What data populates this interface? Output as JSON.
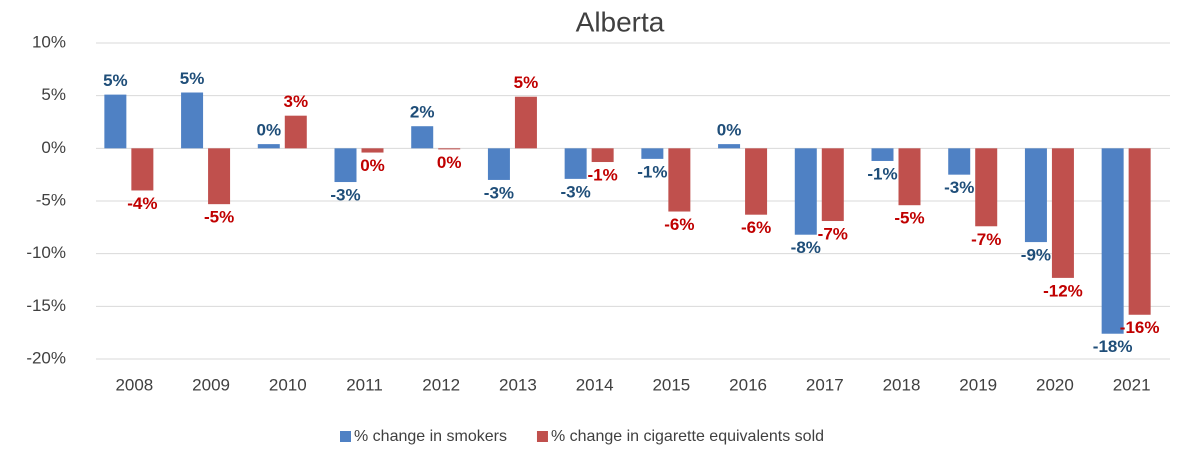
{
  "chart_data": {
    "type": "bar",
    "title": "Alberta",
    "categories": [
      "2008",
      "2009",
      "2010",
      "2011",
      "2012",
      "2013",
      "2014",
      "2015",
      "2016",
      "2017",
      "2018",
      "2019",
      "2020",
      "2021"
    ],
    "series": [
      {
        "name": "% change in smokers",
        "color": "#4f81c4",
        "label_color": "#1f4e79",
        "values": [
          5.1,
          5.3,
          0.4,
          -3.2,
          2.1,
          -3.0,
          -2.9,
          -1.0,
          0.4,
          -8.2,
          -1.2,
          -2.5,
          -8.9,
          -17.6
        ],
        "value_labels": [
          "5%",
          "5%",
          "0%",
          "-3%",
          "2%",
          "-3%",
          "-3%",
          "-1%",
          "0%",
          "-8%",
          "-1%",
          "-3%",
          "-9%",
          "-18%"
        ]
      },
      {
        "name": "% change in cigarette equivalents sold",
        "color": "#c0504d",
        "label_color": "#c00000",
        "values": [
          -4.0,
          -5.3,
          3.1,
          -0.4,
          -0.1,
          4.9,
          -1.3,
          -6.0,
          -6.3,
          -6.9,
          -5.4,
          -7.4,
          -12.3,
          -15.8
        ],
        "value_labels": [
          "-4%",
          "-5%",
          "3%",
          "0%",
          "0%",
          "5%",
          "-1%",
          "-6%",
          "-6%",
          "-7%",
          "-5%",
          "-7%",
          "-12%",
          "-16%"
        ]
      }
    ],
    "ylim": [
      -20,
      10
    ],
    "yticks": [
      {
        "value": -20,
        "label": "-20%"
      },
      {
        "value": -15,
        "label": "-15%"
      },
      {
        "value": -10,
        "label": "-10%"
      },
      {
        "value": -5,
        "label": "-5%"
      },
      {
        "value": 0,
        "label": "0%"
      },
      {
        "value": 5,
        "label": "5%"
      },
      {
        "value": 10,
        "label": "10%"
      }
    ],
    "grid": true,
    "legend": "bottom"
  }
}
